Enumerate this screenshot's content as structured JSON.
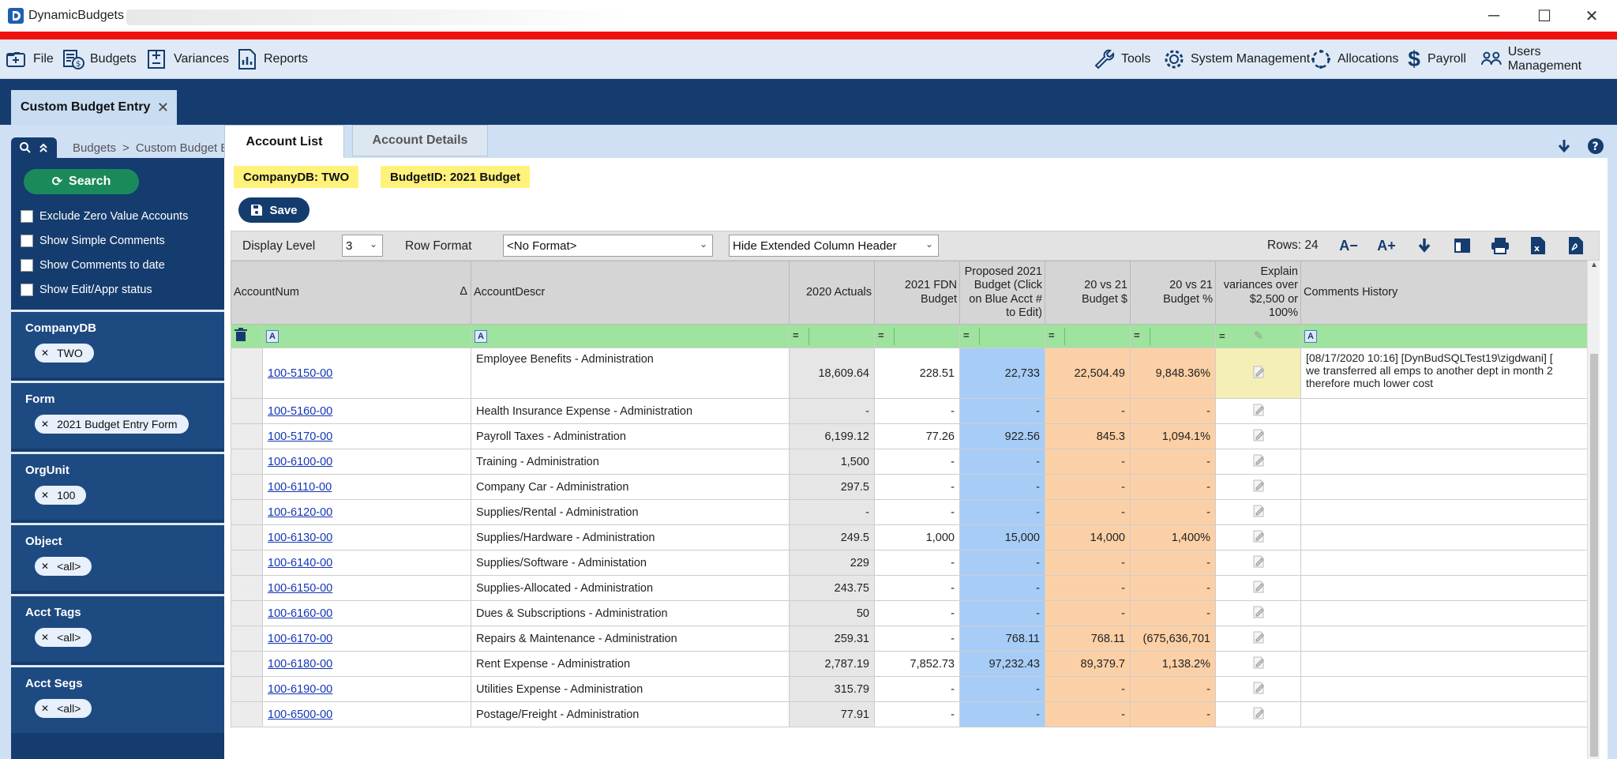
{
  "window": {
    "title": "DynamicBudgets -"
  },
  "menu": {
    "left": [
      "File",
      "Budgets",
      "Variances",
      "Reports"
    ],
    "right": [
      "Tools",
      "System Management",
      "Allocations",
      "Payroll",
      "Users Management"
    ]
  },
  "doc_tab": {
    "label": "Custom Budget Entry",
    "close": "✕"
  },
  "breadcrumb": {
    "root": "Budgets",
    "sep": ">",
    "current": "Custom Budget Entry"
  },
  "sidebar": {
    "search_label": "Search",
    "checkboxes": [
      "Exclude Zero Value Accounts",
      "Show Simple Comments",
      "Show Comments to date",
      "Show Edit/Appr status"
    ],
    "facets": [
      {
        "label": "CompanyDB",
        "value": "TWO"
      },
      {
        "label": "Form",
        "value": "2021 Budget Entry Form"
      },
      {
        "label": "OrgUnit",
        "value": "100"
      },
      {
        "label": "Object",
        "value": "<all>"
      },
      {
        "label": "Acct Tags",
        "value": "<all>"
      },
      {
        "label": "Acct Segs",
        "value": "<all>"
      }
    ]
  },
  "tabs": {
    "active": "Account List",
    "inactive": "Account Details"
  },
  "chips": {
    "company": "CompanyDB: TWO",
    "budget": "BudgetID: 2021 Budget"
  },
  "save_label": "Save",
  "toolbar": {
    "display_level_label": "Display Level",
    "display_level_value": "3",
    "row_format_label": "Row Format",
    "row_format_value": "<No Format>",
    "header_mode_value": "Hide Extended Column Header",
    "rows_label": "Rows: 24",
    "font_minus": "A−",
    "font_plus": "A+"
  },
  "grid": {
    "headers": {
      "acctnum": "AccountNum",
      "sort": "Δ",
      "descr": "AccountDescr",
      "actuals": "2020 Actuals",
      "fdn": "2021 FDN Budget",
      "proposed": "Proposed 2021 Budget (Click on Blue Acct # to Edit)",
      "diff": "20 vs 21 Budget $",
      "pct": "20 vs 21 Budget %",
      "explain": "Explain variances over $2,500 or 100%",
      "comments": "Comments History"
    },
    "filter_eq": "=",
    "rows": [
      {
        "acct": "100-5150-00",
        "descr": "Employee Benefits - Administration",
        "actuals": "18,609.64",
        "fdn": "228.51",
        "proposed": "22,733",
        "diff": "22,504.49",
        "pct": "9,848.36%",
        "comment1": "[08/17/2020 10:16]  [DynBudSQLTest19\\zigdwani]  [",
        "comment2": "we transferred all emps to another dept in month 2",
        "comment3": "therefore much lower cost"
      },
      {
        "acct": "100-5160-00",
        "descr": "Health Insurance Expense - Administration",
        "actuals": "-",
        "fdn": "-",
        "proposed": "-",
        "diff": "-",
        "pct": "-"
      },
      {
        "acct": "100-5170-00",
        "descr": "Payroll Taxes - Administration",
        "actuals": "6,199.12",
        "fdn": "77.26",
        "proposed": "922.56",
        "diff": "845.3",
        "pct": "1,094.1%"
      },
      {
        "acct": "100-6100-00",
        "descr": "Training - Administration",
        "actuals": "1,500",
        "fdn": "-",
        "proposed": "-",
        "diff": "-",
        "pct": "-"
      },
      {
        "acct": "100-6110-00",
        "descr": "Company Car - Administration",
        "actuals": "297.5",
        "fdn": "-",
        "proposed": "-",
        "diff": "-",
        "pct": "-"
      },
      {
        "acct": "100-6120-00",
        "descr": "Supplies/Rental - Administration",
        "actuals": "-",
        "fdn": "-",
        "proposed": "-",
        "diff": "-",
        "pct": "-"
      },
      {
        "acct": "100-6130-00",
        "descr": "Supplies/Hardware - Administration",
        "actuals": "249.5",
        "fdn": "1,000",
        "proposed": "15,000",
        "diff": "14,000",
        "pct": "1,400%"
      },
      {
        "acct": "100-6140-00",
        "descr": "Supplies/Software - Administation",
        "actuals": "229",
        "fdn": "-",
        "proposed": "-",
        "diff": "-",
        "pct": "-"
      },
      {
        "acct": "100-6150-00",
        "descr": "Supplies-Allocated - Administration",
        "actuals": "243.75",
        "fdn": "-",
        "proposed": "-",
        "diff": "-",
        "pct": "-"
      },
      {
        "acct": "100-6160-00",
        "descr": "Dues & Subscriptions - Administration",
        "actuals": "50",
        "fdn": "-",
        "proposed": "-",
        "diff": "-",
        "pct": "-"
      },
      {
        "acct": "100-6170-00",
        "descr": "Repairs & Maintenance - Administration",
        "actuals": "259.31",
        "fdn": "-",
        "proposed": "768.11",
        "diff": "768.11",
        "pct": "(675,636,701"
      },
      {
        "acct": "100-6180-00",
        "descr": "Rent Expense - Administration",
        "actuals": "2,787.19",
        "fdn": "7,852.73",
        "proposed": "97,232.43",
        "diff": "89,379.7",
        "pct": "1,138.2%"
      },
      {
        "acct": "100-6190-00",
        "descr": "Utilities Expense - Administration",
        "actuals": "315.79",
        "fdn": "-",
        "proposed": "-",
        "diff": "-",
        "pct": "-"
      },
      {
        "acct": "100-6500-00",
        "descr": "Postage/Freight - Administration",
        "actuals": "77.91",
        "fdn": "-",
        "proposed": "-",
        "diff": "-",
        "pct": "-"
      }
    ]
  }
}
